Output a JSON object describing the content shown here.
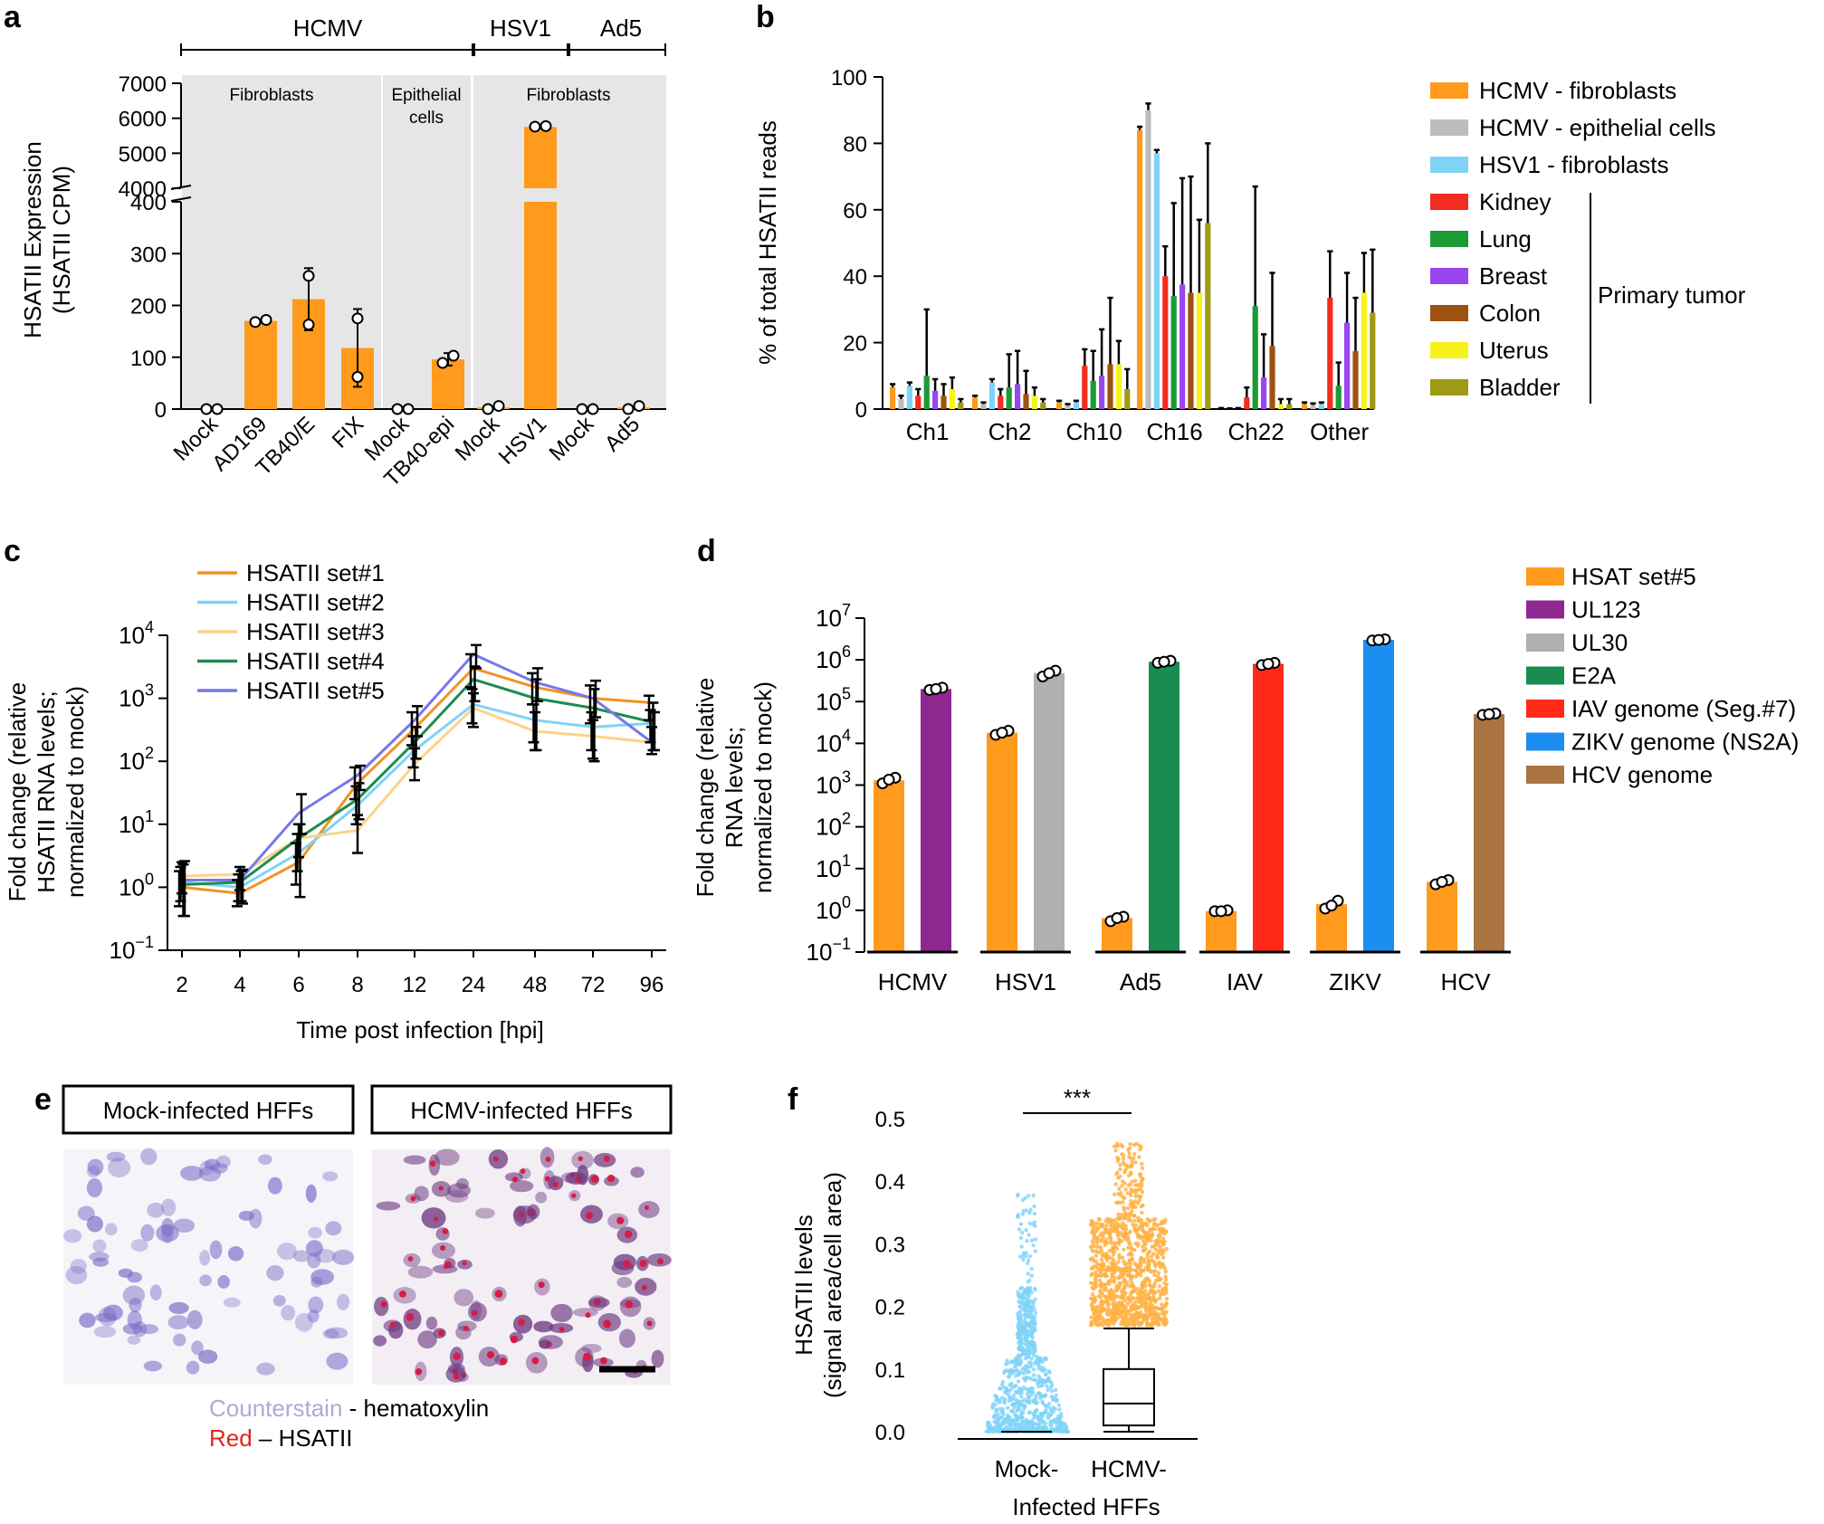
{
  "panel_labels": {
    "a": "a",
    "b": "b",
    "c": "c",
    "d": "d",
    "e": "e",
    "f": "f"
  },
  "chart_data": [
    {
      "panel": "a",
      "type": "bar",
      "ylabel_line1": "HSATII Expression",
      "ylabel_line2": "(HSATII CPM)",
      "virus_groups": [
        "HCMV",
        "HSV1",
        "Ad5"
      ],
      "cell_groups": [
        "Fibroblasts",
        "Epithelial",
        "cells",
        "Fibroblasts"
      ],
      "categories": [
        "Mock",
        "AD169",
        "TB40/E",
        "FIX",
        "Mock",
        "TB40-epi",
        "Mock",
        "HSV1",
        "Mock",
        "Ad5"
      ],
      "values": [
        0,
        170,
        212,
        118,
        0,
        96,
        3,
        5750,
        0,
        3
      ],
      "errors": [
        0,
        3,
        60,
        75,
        0,
        12,
        2,
        40,
        0,
        2
      ],
      "points": [
        [
          0,
          0
        ],
        [
          168,
          172
        ],
        [
          257,
          163
        ],
        [
          175,
          62
        ],
        [
          0,
          0
        ],
        [
          89,
          103
        ],
        [
          0,
          6
        ],
        [
          5760,
          5775
        ],
        [
          0,
          0
        ],
        [
          0,
          6
        ]
      ],
      "yticks_low": [
        "0",
        "100",
        "200",
        "300",
        "400"
      ],
      "yticks_high": [
        "4000",
        "5000",
        "6000",
        "7000"
      ],
      "ylim_low": [
        0,
        400
      ],
      "ylim_high": [
        4000,
        7000
      ],
      "bar_color": "#FF9A1C"
    },
    {
      "panel": "b",
      "type": "bar",
      "ylabel": "% of total HSATII reads",
      "ylim": [
        0,
        100
      ],
      "yticks": [
        "0",
        "20",
        "40",
        "60",
        "80",
        "100"
      ],
      "categories": [
        "Ch1",
        "Ch2",
        "Ch10",
        "Ch16",
        "Ch22",
        "Other"
      ],
      "series": [
        {
          "name": "HCMV - fibroblasts",
          "color": "#FF9A1C",
          "values": [
            6.5,
            3.5,
            2,
            84,
            0.2,
            1.5
          ],
          "errors": [
            1,
            0.5,
            0.5,
            1,
            0.1,
            0.5
          ]
        },
        {
          "name": "HCMV - epithelial cells",
          "color": "#BDBDBD",
          "values": [
            3,
            1.5,
            1,
            90,
            0.1,
            1.2
          ],
          "errors": [
            1,
            0.5,
            0.5,
            2,
            0.1,
            0.5
          ]
        },
        {
          "name": "HSV1 - fibroblasts",
          "color": "#7FD3F7",
          "values": [
            7,
            8,
            2,
            77,
            0.2,
            1.5
          ],
          "errors": [
            1,
            1,
            0.5,
            1,
            0.1,
            0.5
          ]
        },
        {
          "name": "Kidney",
          "color": "#F22C1E",
          "values": [
            4,
            4,
            13,
            40,
            3.5,
            33.5
          ],
          "errors": [
            2,
            2,
            5,
            9,
            3,
            14
          ]
        },
        {
          "name": "Lung",
          "color": "#1C9A35",
          "values": [
            10,
            6.5,
            8.5,
            34,
            31,
            7
          ],
          "errors": [
            20,
            10,
            9,
            28,
            36,
            7
          ]
        },
        {
          "name": "Breast",
          "color": "#9B45F0",
          "values": [
            5.5,
            7.5,
            10,
            37.5,
            9.5,
            26
          ],
          "errors": [
            3.5,
            10,
            14,
            32,
            13,
            15
          ]
        },
        {
          "name": "Colon",
          "color": "#9E5210",
          "values": [
            4,
            4.5,
            13.5,
            35,
            19,
            17.5
          ],
          "errors": [
            3.5,
            7,
            20,
            35,
            22,
            16
          ]
        },
        {
          "name": "Uterus",
          "color": "#F7F21C",
          "values": [
            6,
            4,
            13.5,
            35,
            1.5,
            35
          ],
          "errors": [
            3.5,
            2.5,
            7,
            22,
            1.5,
            12
          ]
        },
        {
          "name": "Bladder",
          "color": "#9E9A15",
          "values": [
            2,
            2,
            6,
            56,
            1.5,
            29
          ],
          "errors": [
            1,
            1,
            6,
            24,
            1.5,
            19
          ]
        }
      ],
      "legend_group_label": "Primary tumor"
    },
    {
      "panel": "c",
      "type": "line",
      "ylabel_line1": "Fold change (relative",
      "ylabel_line2": "HSATII RNA levels;",
      "ylabel_line3": "normalized to mock)",
      "xlabel": "Time post infection [hpi]",
      "categories": [
        "2",
        "4",
        "6",
        "8",
        "12",
        "24",
        "48",
        "72",
        "96"
      ],
      "yscale": "log",
      "yticks": [
        {
          "base": "10",
          "exp": "4"
        },
        {
          "base": "10",
          "exp": "3"
        },
        {
          "base": "10",
          "exp": "2"
        },
        {
          "base": "10",
          "exp": "1"
        },
        {
          "base": "10",
          "exp": "0"
        },
        {
          "base": "10",
          "exp": "−1"
        }
      ],
      "ylim": [
        0.1,
        10000
      ],
      "series": [
        {
          "name": "HSATII set#1",
          "color": "#F39322",
          "values": [
            1.0,
            0.8,
            2.5,
            45,
            330,
            3000,
            1500,
            1000,
            850
          ],
          "err_hi": [
            1.8,
            1.3,
            5,
            80,
            600,
            5000,
            2500,
            1600,
            1100
          ],
          "err_lo": [
            0.5,
            0.5,
            1.1,
            25,
            180,
            1500,
            800,
            400,
            450
          ]
        },
        {
          "name": "HSATII set#2",
          "color": "#7FD3F7",
          "values": [
            1.2,
            1.0,
            3.5,
            20,
            150,
            800,
            450,
            350,
            400
          ],
          "err_hi": [
            2.1,
            1.6,
            7,
            40,
            250,
            1400,
            800,
            600,
            650
          ],
          "err_lo": [
            0.6,
            0.6,
            1.8,
            10,
            80,
            400,
            200,
            150,
            200
          ]
        },
        {
          "name": "HSATII set#3",
          "color": "#FBD38A",
          "values": [
            1.5,
            1.6,
            6,
            8,
            90,
            700,
            300,
            250,
            200
          ],
          "err_hi": [
            2.5,
            2.1,
            10,
            14,
            160,
            1200,
            600,
            450,
            350
          ],
          "err_lo": [
            0.8,
            0.9,
            3,
            3.5,
            50,
            350,
            150,
            110,
            130
          ]
        },
        {
          "name": "HSATII set#4",
          "color": "#1E8B50",
          "values": [
            1.1,
            1.2,
            6,
            25,
            200,
            2000,
            1000,
            700,
            420
          ],
          "err_hi": [
            2.3,
            1.8,
            10,
            45,
            350,
            3200,
            2000,
            1400,
            850
          ],
          "err_lo": [
            0.35,
            0.6,
            0.7,
            12,
            110,
            900,
            150,
            100,
            150
          ]
        },
        {
          "name": "HSATII set#5",
          "color": "#7878E8",
          "values": [
            1.3,
            1.3,
            15,
            60,
            450,
            5000,
            1800,
            1000,
            200
          ],
          "err_hi": [
            2.6,
            1.9,
            30,
            85,
            750,
            7000,
            3000,
            1900,
            600
          ],
          "err_lo": [
            0.35,
            0.55,
            7,
            35,
            250,
            3000,
            900,
            500,
            150
          ]
        }
      ]
    },
    {
      "panel": "d",
      "type": "bar",
      "ylabel_line1": "Fold change (relative",
      "ylabel_line2": "RNA levels;",
      "ylabel_line3": "normalized to mock)",
      "yscale": "log",
      "yticks": [
        {
          "base": "10",
          "exp": "7"
        },
        {
          "base": "10",
          "exp": "6"
        },
        {
          "base": "10",
          "exp": "5"
        },
        {
          "base": "10",
          "exp": "4"
        },
        {
          "base": "10",
          "exp": "3"
        },
        {
          "base": "10",
          "exp": "2"
        },
        {
          "base": "10",
          "exp": "1"
        },
        {
          "base": "10",
          "exp": "0"
        },
        {
          "base": "10",
          "exp": "−1"
        }
      ],
      "ylim": [
        0.1,
        10000000
      ],
      "categories": [
        "HCMV",
        "HSV1",
        "Ad5",
        "IAV",
        "ZIKV",
        "HCV"
      ],
      "bars": [
        {
          "group": 0,
          "series": 0,
          "value": 1300,
          "points": [
            1100,
            1500,
            1350
          ]
        },
        {
          "group": 0,
          "series": 1,
          "value": 200000,
          "points": [
            190000,
            215000,
            200000
          ]
        },
        {
          "group": 1,
          "series": 0,
          "value": 18000,
          "points": [
            16000,
            20000,
            18000
          ]
        },
        {
          "group": 1,
          "series": 2,
          "value": 480000,
          "points": [
            400000,
            550000,
            480000
          ]
        },
        {
          "group": 2,
          "series": 0,
          "value": 0.65,
          "points": [
            0.55,
            0.7,
            0.65
          ]
        },
        {
          "group": 2,
          "series": 3,
          "value": 900000,
          "points": [
            850000,
            950000,
            900000
          ]
        },
        {
          "group": 3,
          "series": 0,
          "value": 0.95,
          "points": [
            0.95,
            1.0,
            0.95
          ]
        },
        {
          "group": 3,
          "series": 4,
          "value": 800000,
          "points": [
            750000,
            850000,
            800000
          ]
        },
        {
          "group": 4,
          "series": 0,
          "value": 1.4,
          "points": [
            1.1,
            1.7,
            1.3
          ]
        },
        {
          "group": 4,
          "series": 5,
          "value": 3000000,
          "points": [
            2900000,
            3100000,
            3000000
          ]
        },
        {
          "group": 5,
          "series": 0,
          "value": 4.8,
          "points": [
            4.2,
            5.3,
            4.8
          ]
        },
        {
          "group": 5,
          "series": 6,
          "value": 50000,
          "points": [
            48000,
            52000,
            50000
          ]
        }
      ],
      "series": [
        {
          "name": "HSAT set#5",
          "color": "#FF9A1C"
        },
        {
          "name": "UL123",
          "color": "#8E2790"
        },
        {
          "name": "UL30",
          "color": "#B0B0B0"
        },
        {
          "name": "E2A",
          "color": "#1B8C50"
        },
        {
          "name": "IAV genome (Seg.#7)",
          "color": "#FF2A17"
        },
        {
          "name": "ZIKV genome (NS2A)",
          "color": "#1C8EF0"
        },
        {
          "name": "HCV genome",
          "color": "#A97440"
        }
      ]
    },
    {
      "panel": "f",
      "type": "scatter",
      "ylabel_line1": "HSATII levels",
      "ylabel_line2": "(signal area/cell area)",
      "ylim": [
        0,
        0.5
      ],
      "yticks": [
        "0.0",
        "0.1",
        "0.2",
        "0.3",
        "0.4",
        "0.5"
      ],
      "categories": [
        "Mock-",
        "HCMV-"
      ],
      "xlabel": "Infected HFFs",
      "significance": "***",
      "box": {
        "whisker_low": 0.0,
        "q1": 0.01,
        "median": 0.045,
        "q3": 0.1,
        "whisker_high": 0.165
      },
      "series": [
        {
          "name": "Mock",
          "color": "#7FD3F7",
          "max": 0.38,
          "median_density": 0.05
        },
        {
          "name": "HCMV",
          "color": "#FFB347",
          "max": 0.46,
          "median_density": 0.26
        }
      ]
    }
  ],
  "panel_e": {
    "titles": [
      "Mock-infected HFFs",
      "HCMV-infected HFFs"
    ],
    "caption_line1_colored": "Counterstain",
    "caption_line1_rest": " - hematoxylin",
    "caption_line2_colored": "Red",
    "caption_line2_rest": " – HSATII",
    "counterstain_color": "#B7A5D8",
    "red_color": "#E3231B"
  }
}
